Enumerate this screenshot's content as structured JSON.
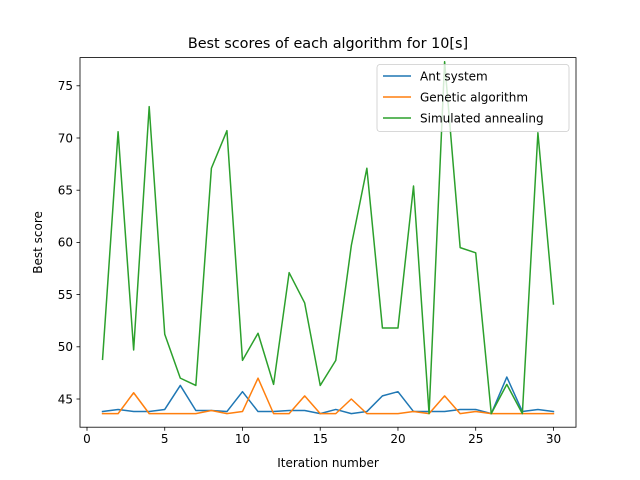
{
  "chart_data": {
    "type": "line",
    "title": "Best scores of each algorithm for 10[s]",
    "xlabel": "Iteration number",
    "ylabel": "Best score",
    "xlim": [
      -0.45,
      31.45
    ],
    "ylim": [
      42.3,
      77.7
    ],
    "xticks": [
      0,
      5,
      10,
      15,
      20,
      25,
      30
    ],
    "yticks": [
      45,
      50,
      55,
      60,
      65,
      70,
      75
    ],
    "grid": false,
    "legend_position": "top-right",
    "x": [
      1,
      2,
      3,
      4,
      5,
      6,
      7,
      8,
      9,
      10,
      11,
      12,
      13,
      14,
      15,
      16,
      17,
      18,
      19,
      20,
      21,
      22,
      23,
      24,
      25,
      26,
      27,
      28,
      29,
      30
    ],
    "series": [
      {
        "name": "Ant system",
        "color": "#1f77b4",
        "values": [
          43.8,
          44.0,
          43.8,
          43.8,
          44.0,
          46.3,
          43.9,
          43.9,
          43.8,
          45.7,
          43.8,
          43.8,
          43.9,
          43.9,
          43.6,
          44.0,
          43.6,
          43.8,
          45.3,
          45.7,
          43.8,
          43.8,
          43.8,
          44.0,
          44.0,
          43.6,
          47.1,
          43.8,
          44.0,
          43.8
        ]
      },
      {
        "name": "Genetic algorithm",
        "color": "#ff7f0e",
        "values": [
          43.6,
          43.6,
          45.6,
          43.6,
          43.6,
          43.6,
          43.6,
          43.9,
          43.6,
          43.8,
          47.0,
          43.6,
          43.6,
          45.3,
          43.6,
          43.6,
          45.0,
          43.6,
          43.6,
          43.6,
          43.8,
          43.6,
          45.3,
          43.6,
          43.8,
          43.6,
          43.6,
          43.6,
          43.6,
          43.6
        ]
      },
      {
        "name": "Simulated annealing",
        "color": "#2ca02c",
        "values": [
          48.8,
          70.6,
          49.7,
          73.0,
          51.2,
          47.0,
          46.3,
          67.1,
          70.7,
          48.7,
          51.3,
          46.4,
          57.1,
          54.2,
          46.3,
          48.7,
          59.7,
          67.1,
          51.8,
          51.8,
          65.4,
          43.6,
          77.3,
          59.5,
          59.0,
          43.6,
          46.4,
          43.6,
          70.5,
          54.1
        ]
      }
    ]
  }
}
